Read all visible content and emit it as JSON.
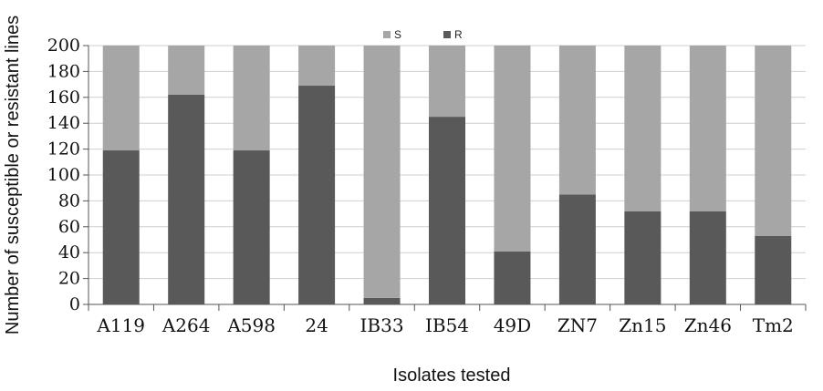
{
  "chart_data": {
    "type": "bar",
    "stacked": true,
    "title": "",
    "xlabel": "Isolates tested",
    "ylabel": "Number of susceptible or resistant lines",
    "categories": [
      "A119",
      "A264",
      "A598",
      "24",
      "IB33",
      "IB54",
      "49D",
      "ZN7",
      "Zn15",
      "Zn46",
      "Tm2"
    ],
    "series": [
      {
        "name": "R",
        "color": "#595959",
        "values": [
          119,
          162,
          119,
          169,
          5,
          145,
          41,
          85,
          72,
          72,
          53
        ]
      },
      {
        "name": "S",
        "color": "#a6a6a6",
        "values": [
          81,
          38,
          81,
          31,
          195,
          55,
          159,
          115,
          128,
          128,
          147
        ]
      }
    ],
    "ylim": [
      0,
      200
    ],
    "yticks": [
      0,
      20,
      40,
      60,
      80,
      100,
      120,
      140,
      160,
      180,
      200
    ],
    "grid": true,
    "legend": {
      "position": "top",
      "order": [
        "S",
        "R"
      ]
    }
  }
}
